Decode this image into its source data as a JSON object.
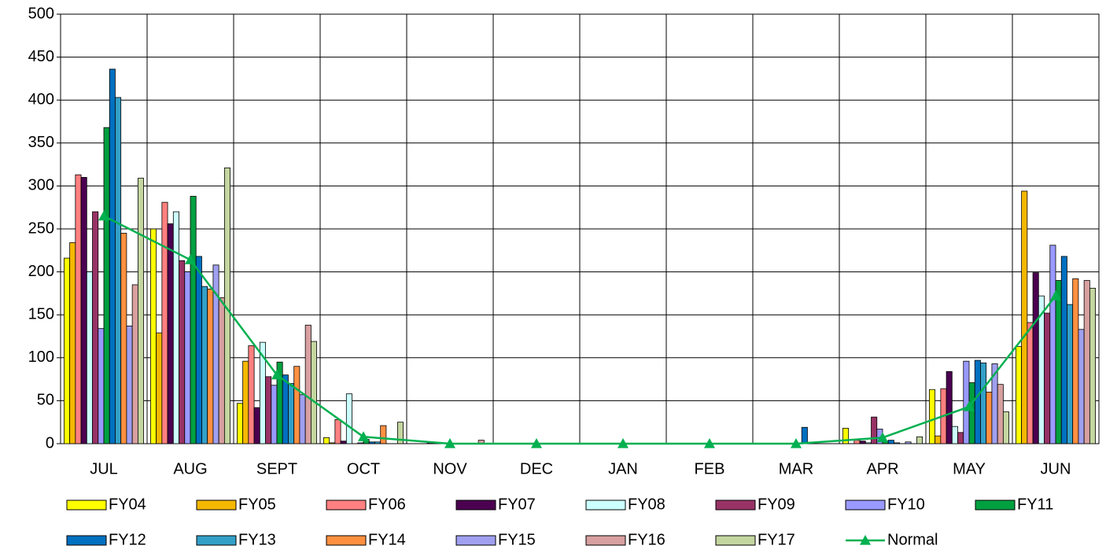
{
  "chart_data": {
    "type": "bar",
    "categories": [
      "JUL",
      "AUG",
      "SEPT",
      "OCT",
      "NOV",
      "DEC",
      "JAN",
      "FEB",
      "MAR",
      "APR",
      "MAY",
      "JUN"
    ],
    "series": [
      {
        "name": "FY04",
        "color": "#ffff00",
        "values": [
          216,
          250,
          47,
          7,
          0,
          0,
          0,
          0,
          0,
          18,
          63,
          113
        ]
      },
      {
        "name": "FY05",
        "color": "#f5b800",
        "values": [
          234,
          129,
          96,
          1,
          0,
          0,
          0,
          0,
          0,
          0,
          9,
          294
        ]
      },
      {
        "name": "FY06",
        "color": "#ff8080",
        "values": [
          313,
          281,
          114,
          28,
          0,
          0,
          0,
          0,
          0,
          4,
          64,
          141
        ]
      },
      {
        "name": "FY07",
        "color": "#4b0050",
        "values": [
          310,
          256,
          42,
          3,
          1,
          0,
          0,
          0,
          0,
          3,
          84,
          199
        ]
      },
      {
        "name": "FY08",
        "color": "#ccffff",
        "values": [
          200,
          270,
          118,
          58,
          0,
          0,
          0,
          0,
          0,
          1,
          20,
          172
        ]
      },
      {
        "name": "FY09",
        "color": "#993366",
        "values": [
          270,
          213,
          78,
          0,
          0,
          0,
          0,
          0,
          0,
          31,
          13,
          152
        ]
      },
      {
        "name": "FY10",
        "color": "#9999ff",
        "values": [
          134,
          200,
          68,
          1,
          0,
          0,
          0,
          0,
          0,
          17,
          96,
          231
        ]
      },
      {
        "name": "FY11",
        "color": "#00a040",
        "values": [
          368,
          288,
          95,
          5,
          0,
          0,
          0,
          0,
          0,
          3,
          71,
          190
        ]
      },
      {
        "name": "FY12",
        "color": "#0070c0",
        "values": [
          436,
          218,
          80,
          2,
          0,
          0,
          0,
          0,
          19,
          4,
          97,
          218
        ]
      },
      {
        "name": "FY13",
        "color": "#33a0c8",
        "values": [
          403,
          183,
          70,
          2,
          0,
          0,
          0,
          0,
          0,
          1,
          94,
          162
        ]
      },
      {
        "name": "FY14",
        "color": "#ff9040",
        "values": [
          245,
          180,
          90,
          21,
          0,
          0,
          0,
          0,
          0,
          0,
          60,
          192
        ]
      },
      {
        "name": "FY15",
        "color": "#a0a0f0",
        "values": [
          137,
          208,
          57,
          0,
          0,
          0,
          0,
          0,
          0,
          2,
          93,
          133
        ]
      },
      {
        "name": "FY16",
        "color": "#d8a0a0",
        "values": [
          185,
          170,
          138,
          0,
          4,
          0,
          0,
          0,
          0,
          0,
          69,
          190
        ]
      },
      {
        "name": "FY17",
        "color": "#c4d6a0",
        "values": [
          309,
          321,
          119,
          25,
          0,
          0,
          0,
          0,
          0,
          8,
          37,
          181
        ]
      },
      {
        "name": "Normal",
        "type": "line",
        "color": "#00b050",
        "values": [
          265,
          214,
          80,
          8,
          0,
          0,
          0,
          0,
          0,
          7,
          43,
          172
        ]
      }
    ],
    "ylim": [
      0,
      500
    ],
    "yticks": [
      0,
      50,
      100,
      150,
      200,
      250,
      300,
      350,
      400,
      450,
      500
    ],
    "grid": true
  }
}
